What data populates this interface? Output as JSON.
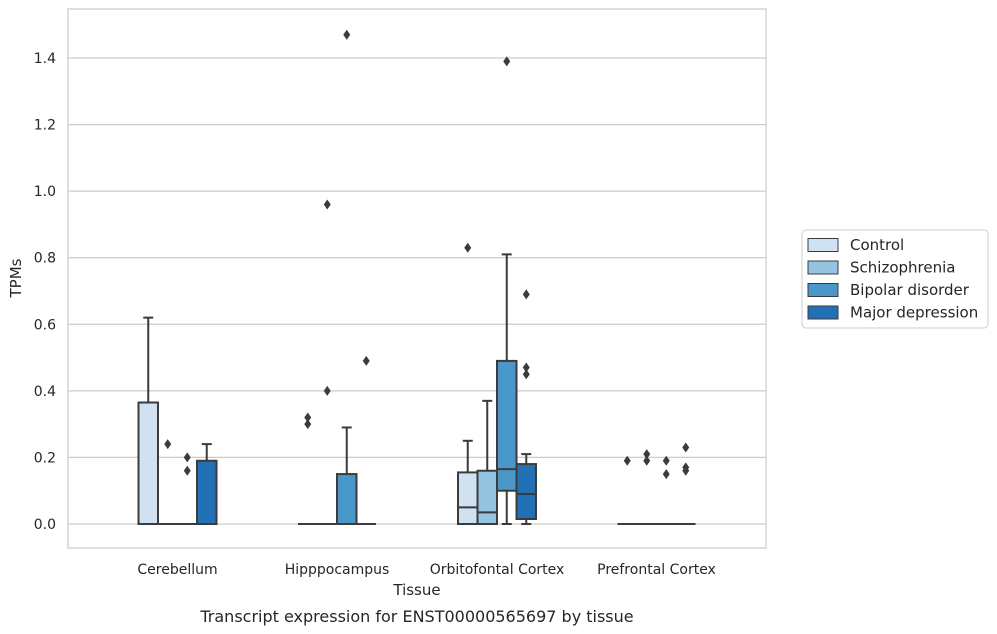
{
  "chart_data": {
    "type": "boxplot",
    "caption": "Transcript expression for ENST00000565697 by tissue",
    "xlabel": "Tissue",
    "ylabel": "TPMs",
    "ylim": [
      -0.07,
      1.55
    ],
    "yticks": [
      0.0,
      0.2,
      0.4,
      0.6,
      0.8,
      1.0,
      1.2,
      1.4
    ],
    "ytick_labels": [
      "0.0",
      "0.2",
      "0.4",
      "0.6",
      "0.8",
      "1.0",
      "1.2",
      "1.4"
    ],
    "grid": "horizontal",
    "legend_position": "right-outside",
    "categories": [
      "Cerebellum",
      "Hipppocampus",
      "Orbitofontal Cortex",
      "Prefrontal Cortex"
    ],
    "series": [
      {
        "name": "Control",
        "color": "#d0e1f2",
        "boxes": [
          {
            "q1": 0.0,
            "median": 0.0,
            "q3": 0.365,
            "whisker_low": 0.0,
            "whisker_high": 0.62,
            "outliers": []
          },
          {
            "q1": 0.0,
            "median": 0.0,
            "q3": 0.0,
            "whisker_low": 0.0,
            "whisker_high": 0.0,
            "outliers": [
              0.3,
              0.32
            ]
          },
          {
            "q1": 0.0,
            "median": 0.05,
            "q3": 0.155,
            "whisker_low": 0.0,
            "whisker_high": 0.25,
            "outliers": [
              0.83
            ]
          },
          {
            "q1": 0.0,
            "median": 0.0,
            "q3": 0.0,
            "whisker_low": 0.0,
            "whisker_high": 0.0,
            "outliers": [
              0.19
            ]
          }
        ]
      },
      {
        "name": "Schizophrenia",
        "color": "#94c4df",
        "boxes": [
          {
            "q1": 0.0,
            "median": 0.0,
            "q3": 0.0,
            "whisker_low": 0.0,
            "whisker_high": 0.0,
            "outliers": [
              0.24
            ]
          },
          {
            "q1": 0.0,
            "median": 0.0,
            "q3": 0.0,
            "whisker_low": 0.0,
            "whisker_high": 0.0,
            "outliers": [
              0.4,
              0.96
            ]
          },
          {
            "q1": 0.0,
            "median": 0.035,
            "q3": 0.16,
            "whisker_low": 0.0,
            "whisker_high": 0.37,
            "outliers": []
          },
          {
            "q1": 0.0,
            "median": 0.0,
            "q3": 0.0,
            "whisker_low": 0.0,
            "whisker_high": 0.0,
            "outliers": [
              0.19,
              0.21
            ]
          }
        ]
      },
      {
        "name": "Bipolar disorder",
        "color": "#4a98c9",
        "boxes": [
          {
            "q1": 0.0,
            "median": 0.0,
            "q3": 0.0,
            "whisker_low": 0.0,
            "whisker_high": 0.0,
            "outliers": [
              0.16,
              0.2
            ]
          },
          {
            "q1": 0.0,
            "median": 0.0,
            "q3": 0.15,
            "whisker_low": 0.0,
            "whisker_high": 0.29,
            "outliers": [
              1.47
            ]
          },
          {
            "q1": 0.1,
            "median": 0.165,
            "q3": 0.49,
            "whisker_low": 0.0,
            "whisker_high": 0.81,
            "outliers": [
              1.39
            ]
          },
          {
            "q1": 0.0,
            "median": 0.0,
            "q3": 0.0,
            "whisker_low": 0.0,
            "whisker_high": 0.0,
            "outliers": [
              0.15,
              0.19
            ]
          }
        ]
      },
      {
        "name": "Major depression",
        "color": "#2271b5",
        "boxes": [
          {
            "q1": 0.0,
            "median": 0.0,
            "q3": 0.19,
            "whisker_low": 0.0,
            "whisker_high": 0.24,
            "outliers": []
          },
          {
            "q1": 0.0,
            "median": 0.0,
            "q3": 0.0,
            "whisker_low": 0.0,
            "whisker_high": 0.0,
            "outliers": [
              0.49
            ]
          },
          {
            "q1": 0.015,
            "median": 0.09,
            "q3": 0.18,
            "whisker_low": 0.0,
            "whisker_high": 0.21,
            "outliers": [
              0.45,
              0.47,
              0.69
            ]
          },
          {
            "q1": 0.0,
            "median": 0.0,
            "q3": 0.0,
            "whisker_low": 0.0,
            "whisker_high": 0.0,
            "outliers": [
              0.16,
              0.17,
              0.23
            ]
          }
        ]
      }
    ]
  }
}
